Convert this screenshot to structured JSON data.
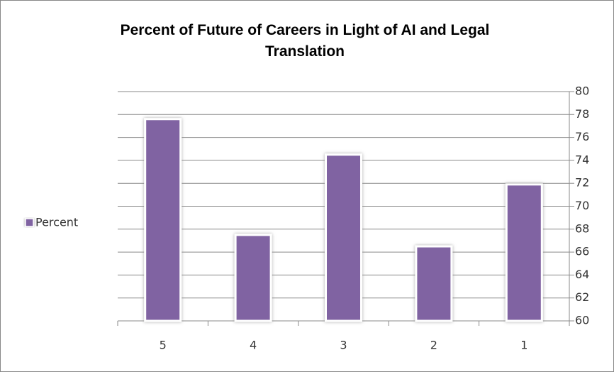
{
  "chart_data": {
    "type": "bar",
    "title": "Percent of Future of Careers in Light of AI and Legal Translation",
    "categories": [
      "5",
      "4",
      "3",
      "2",
      "1"
    ],
    "series": [
      {
        "name": "Percent",
        "color": "#8064a2",
        "values": [
          77.6,
          67.5,
          74.5,
          66.5,
          71.9
        ]
      }
    ],
    "ylim": [
      60,
      80
    ],
    "yticks": [
      60,
      62,
      64,
      66,
      68,
      70,
      72,
      74,
      76,
      78,
      80
    ],
    "grid": true,
    "legend": "left"
  }
}
